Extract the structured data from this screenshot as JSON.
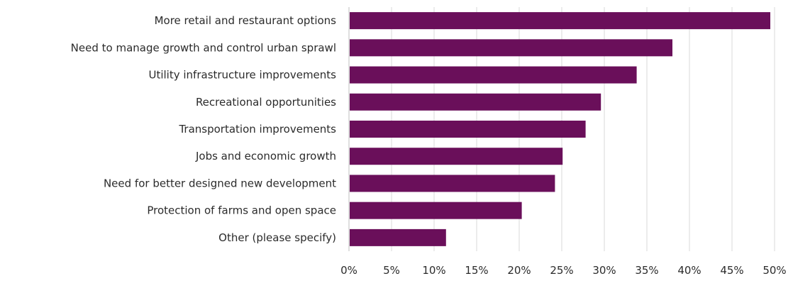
{
  "chart_data": {
    "type": "bar",
    "orientation": "horizontal",
    "categories": [
      "More retail and restaurant options",
      "Need to manage growth and control urban sprawl",
      "Utility infrastructure improvements",
      "Recreational opportunities",
      "Transportation improvements",
      "Jobs and economic growth",
      "Need for better designed new development",
      "Protection of farms and open space",
      "Other (please specify)"
    ],
    "values": [
      49.5,
      38,
      33.8,
      29.6,
      27.8,
      25.1,
      24.2,
      20.3,
      11.4
    ],
    "xlim": [
      0,
      50
    ],
    "x_ticks": [
      "0%",
      "5%",
      "10%",
      "15%",
      "20%",
      "25%",
      "30%",
      "35%",
      "40%",
      "45%",
      "50%"
    ],
    "grid": true,
    "legend": "none",
    "bar_color": "#6a0f5a"
  }
}
